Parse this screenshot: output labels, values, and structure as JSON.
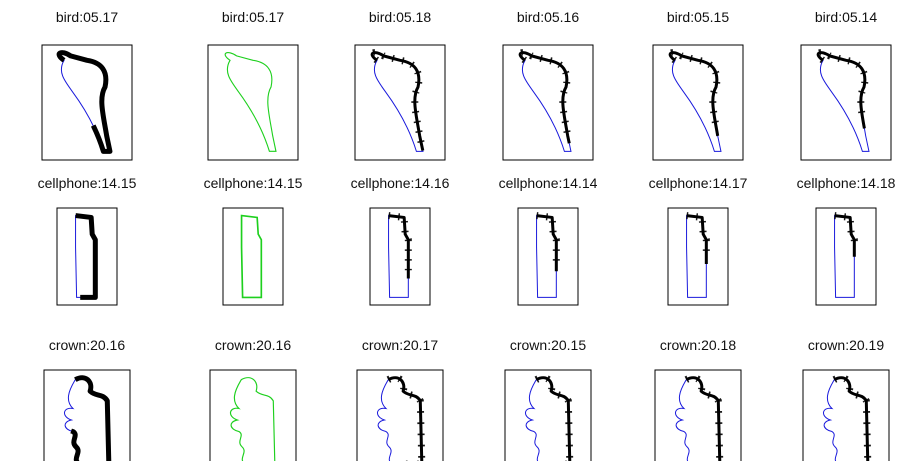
{
  "rows": [
    {
      "panels": [
        {
          "label": "bird:05.17"
        },
        {
          "label": "bird:05.17"
        },
        {
          "label": "bird:05.18"
        },
        {
          "label": "bird:05.16"
        },
        {
          "label": "bird:05.15"
        },
        {
          "label": "bird:05.14"
        }
      ]
    },
    {
      "panels": [
        {
          "label": "cellphone:14.15"
        },
        {
          "label": "cellphone:14.15"
        },
        {
          "label": "cellphone:14.16"
        },
        {
          "label": "cellphone:14.14"
        },
        {
          "label": "cellphone:14.17"
        },
        {
          "label": "cellphone:14.18"
        }
      ]
    },
    {
      "panels": [
        {
          "label": "crown:20.16"
        },
        {
          "label": "crown:20.16"
        },
        {
          "label": "crown:20.17"
        },
        {
          "label": "crown:20.15"
        },
        {
          "label": "crown:20.18"
        },
        {
          "label": "crown:20.19"
        }
      ]
    }
  ]
}
